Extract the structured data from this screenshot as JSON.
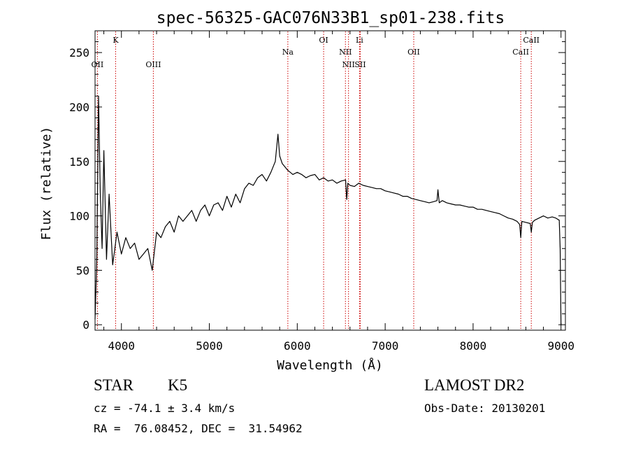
{
  "chart_data": {
    "type": "line",
    "title": "spec-56325-GAC076N33B1_sp01-238.fits",
    "xlabel": "Wavelength (Å)",
    "ylabel": "Flux (relative)",
    "xlim": [
      3700,
      9050
    ],
    "ylim": [
      -5,
      270
    ],
    "xticks": [
      4000,
      5000,
      6000,
      7000,
      8000,
      9000
    ],
    "yticks": [
      0,
      50,
      100,
      150,
      200,
      250
    ],
    "grid": false,
    "line_color": "#000000",
    "marker_color": "#cc0000",
    "series": [
      {
        "x": [
          3700,
          3720,
          3740,
          3760,
          3780,
          3800,
          3830,
          3860,
          3900,
          3950,
          4000,
          4050,
          4100,
          4150,
          4200,
          4250,
          4300,
          4350,
          4400,
          4450,
          4500,
          4550,
          4600,
          4650,
          4700,
          4750,
          4800,
          4850,
          4900,
          4950,
          5000,
          5050,
          5100,
          5150,
          5200,
          5250,
          5300,
          5350,
          5400,
          5450,
          5500,
          5550,
          5600,
          5650,
          5700,
          5750,
          5780,
          5800,
          5830,
          5860,
          5890,
          5920,
          5950,
          6000,
          6050,
          6100,
          6150,
          6200,
          6250,
          6300,
          6350,
          6400,
          6450,
          6500,
          6550,
          6563,
          6575,
          6600,
          6650,
          6700,
          6750,
          6800,
          6850,
          6900,
          6950,
          7000,
          7050,
          7100,
          7150,
          7200,
          7250,
          7300,
          7350,
          7400,
          7450,
          7500,
          7550,
          7590,
          7600,
          7615,
          7650,
          7700,
          7750,
          7800,
          7850,
          7900,
          7950,
          8000,
          8050,
          8100,
          8150,
          8200,
          8250,
          8300,
          8350,
          8400,
          8450,
          8500,
          8530,
          8542,
          8555,
          8600,
          8650,
          8662,
          8675,
          8700,
          8750,
          8800,
          8850,
          8900,
          8940,
          8960,
          8980,
          8990,
          9000
        ],
        "y": [
          5,
          60,
          210,
          120,
          70,
          160,
          60,
          120,
          55,
          85,
          65,
          80,
          70,
          75,
          60,
          65,
          70,
          50,
          85,
          80,
          90,
          95,
          85,
          100,
          95,
          100,
          105,
          95,
          105,
          110,
          100,
          110,
          112,
          105,
          118,
          108,
          120,
          112,
          125,
          130,
          128,
          135,
          138,
          132,
          140,
          150,
          175,
          155,
          148,
          145,
          142,
          140,
          138,
          140,
          138,
          135,
          137,
          138,
          133,
          135,
          132,
          133,
          130,
          132,
          133,
          115,
          130,
          128,
          127,
          130,
          128,
          127,
          126,
          125,
          125,
          123,
          122,
          121,
          120,
          118,
          118,
          116,
          115,
          114,
          113,
          112,
          113,
          114,
          124,
          112,
          114,
          112,
          111,
          110,
          110,
          109,
          108,
          108,
          106,
          106,
          105,
          104,
          103,
          102,
          100,
          98,
          97,
          95,
          92,
          80,
          95,
          94,
          93,
          85,
          94,
          96,
          98,
          100,
          98,
          99,
          98,
          97,
          96,
          70,
          0
        ]
      }
    ],
    "line_markers": [
      {
        "label": "K",
        "x": 3934,
        "row": 0
      },
      {
        "label": "OII",
        "x": 3727,
        "row": 2
      },
      {
        "label": "OIII",
        "x": 4363,
        "row": 2
      },
      {
        "label": "Na",
        "x": 5893,
        "row": 1
      },
      {
        "label": "OI",
        "x": 6300,
        "row": 0
      },
      {
        "label": "NII",
        "x": 6548,
        "row": 1
      },
      {
        "label": "NII",
        "x": 6583,
        "row": 2
      },
      {
        "label": "Li",
        "x": 6708,
        "row": 0
      },
      {
        "label": "SII",
        "x": 6717,
        "row": 2
      },
      {
        "label": "OII",
        "x": 7325,
        "row": 1
      },
      {
        "label": "CaII",
        "x": 8542,
        "row": 1
      },
      {
        "label": "CaII",
        "x": 8662,
        "row": 0
      }
    ]
  },
  "info": {
    "class_label": "STAR",
    "subclass_label": "K5",
    "cz_text": "cz = -74.1 ± 3.4 km/s",
    "coords_text": "RA =  76.08452, DEC =  31.54962",
    "survey": "LAMOST DR2",
    "obs_date": "Obs-Date: 20130201"
  }
}
